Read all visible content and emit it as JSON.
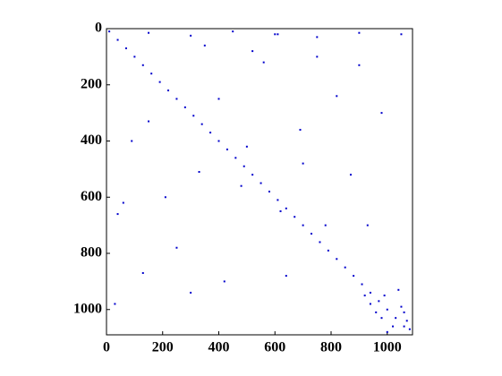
{
  "chart_data": {
    "type": "scatter",
    "color": "#0000cc",
    "x": [
      10,
      40,
      70,
      100,
      130,
      160,
      190,
      220,
      250,
      280,
      310,
      340,
      370,
      400,
      430,
      460,
      490,
      520,
      550,
      580,
      610,
      640,
      670,
      700,
      730,
      760,
      790,
      820,
      850,
      880,
      910,
      940,
      970,
      1000,
      1030,
      1060,
      60,
      350,
      420,
      150,
      700,
      820,
      250,
      500,
      620,
      900,
      30,
      480,
      610,
      780,
      130,
      980,
      560,
      300,
      690,
      870,
      210,
      40,
      1050,
      640,
      90,
      400,
      750,
      330,
      930,
      520,
      960,
      990,
      1020,
      1050,
      1070,
      940,
      1000,
      1040,
      1080,
      980,
      1060,
      920,
      150,
      300,
      450,
      600,
      750,
      900
    ],
    "y": [
      10,
      40,
      70,
      100,
      130,
      160,
      190,
      220,
      250,
      280,
      310,
      340,
      370,
      400,
      430,
      460,
      490,
      520,
      550,
      580,
      610,
      640,
      670,
      700,
      730,
      760,
      790,
      820,
      850,
      880,
      910,
      940,
      970,
      1000,
      1030,
      1060,
      620,
      60,
      900,
      330,
      480,
      240,
      780,
      420,
      650,
      130,
      980,
      560,
      20,
      700,
      870,
      300,
      120,
      940,
      360,
      520,
      600,
      660,
      20,
      880,
      400,
      250,
      100,
      510,
      700,
      80,
      1010,
      950,
      1060,
      990,
      1040,
      980,
      1080,
      930,
      1070,
      1030,
      1010,
      950,
      15,
      25,
      10,
      20,
      30,
      15
    ],
    "xlim": [
      0,
      1090
    ],
    "ylim": [
      1090,
      0
    ],
    "xticks": [
      0,
      200,
      400,
      600,
      800,
      1000
    ],
    "yticks": [
      0,
      200,
      400,
      600,
      800,
      1000
    ]
  }
}
